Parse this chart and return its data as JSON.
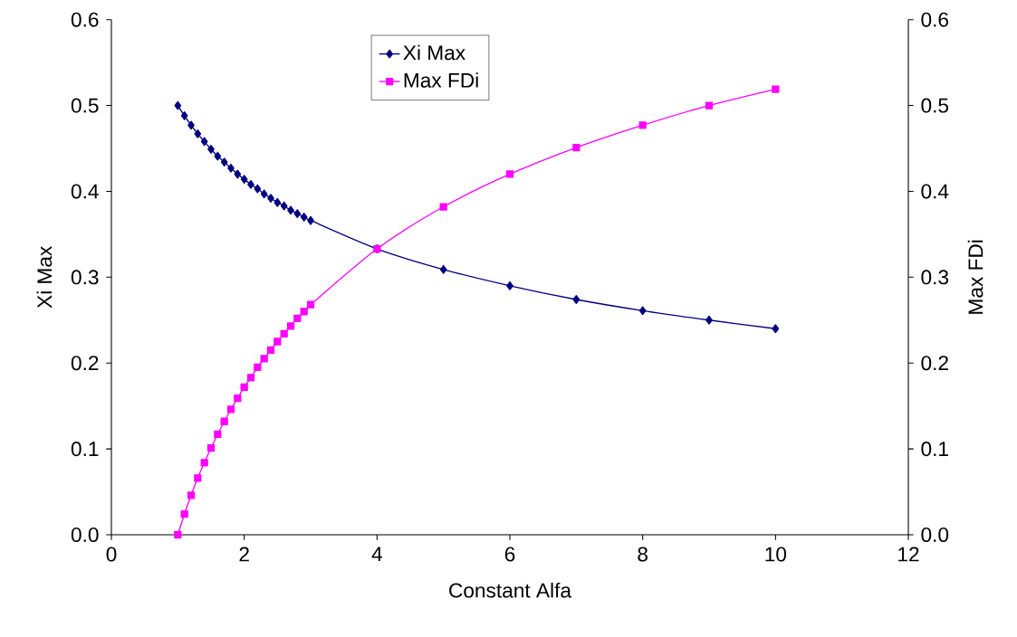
{
  "chart_data": {
    "type": "line",
    "xlabel": "Constant Alfa",
    "ylabel": "Xi Max",
    "y2label": "Max FDi",
    "x": [
      1,
      1.1,
      1.2,
      1.3,
      1.4,
      1.5,
      1.6,
      1.7,
      1.8,
      1.9,
      2,
      2.1,
      2.2,
      2.3,
      2.4,
      2.5,
      2.6,
      2.7,
      2.8,
      2.9,
      3,
      4,
      5,
      6,
      7,
      8,
      9,
      10
    ],
    "series": [
      {
        "name": "Xi Max",
        "color": "#000080",
        "marker": "diamond",
        "values": [
          0.5,
          0.488,
          0.477,
          0.467,
          0.458,
          0.449,
          0.441,
          0.434,
          0.427,
          0.42,
          0.414,
          0.408,
          0.403,
          0.397,
          0.392,
          0.387,
          0.383,
          0.378,
          0.374,
          0.37,
          0.366,
          0.333,
          0.309,
          0.29,
          0.274,
          0.261,
          0.25,
          0.24
        ]
      },
      {
        "name": "Max FDi",
        "color": "#ff00ff",
        "marker": "square",
        "axis": "y2",
        "values": [
          0,
          0.024,
          0.046,
          0.066,
          0.084,
          0.101,
          0.117,
          0.132,
          0.146,
          0.159,
          0.172,
          0.183,
          0.195,
          0.205,
          0.215,
          0.225,
          0.234,
          0.243,
          0.252,
          0.26,
          0.268,
          0.333,
          0.382,
          0.42,
          0.451,
          0.477,
          0.5,
          0.519
        ]
      }
    ],
    "xlim": [
      0,
      12
    ],
    "xticks": [
      0,
      2,
      4,
      6,
      8,
      10,
      12
    ],
    "ylim": [
      0,
      0.6
    ],
    "yticks": [
      {
        "value": 0,
        "label": "0.0"
      },
      0.1,
      0.2,
      0.3,
      0.4,
      0.5,
      0.6
    ],
    "y2lim": [
      0,
      0.6
    ],
    "y2ticks": [
      {
        "value": 0,
        "label": "0.0"
      },
      0.1,
      0.2,
      0.3,
      0.4,
      0.5,
      0.6
    ],
    "grid": false,
    "legend": "top",
    "line_style": "solid"
  }
}
